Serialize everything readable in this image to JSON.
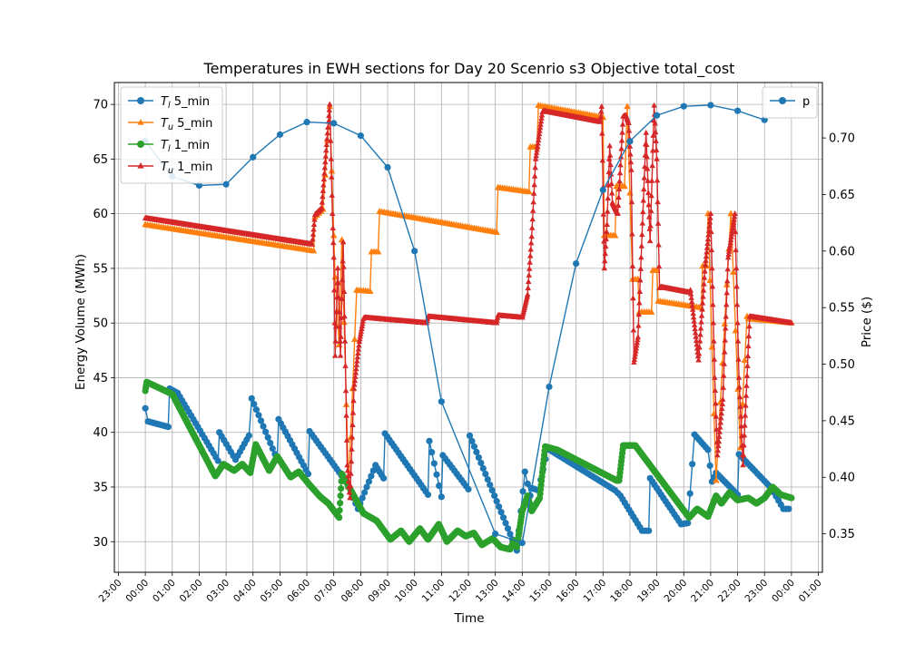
{
  "chart_data": {
    "type": "line",
    "title": "Temperatures in EWH sections for Day 20 Scenrio s3 Objective total_cost",
    "xlabel": "Time",
    "ylabel_left": "Energy Volume (MWh)",
    "ylabel_right": "Price ($)",
    "x_ticks": [
      "23:00",
      "00:00",
      "01:00",
      "02:00",
      "03:00",
      "04:00",
      "05:00",
      "06:00",
      "07:00",
      "08:00",
      "09:00",
      "10:00",
      "11:00",
      "12:00",
      "13:00",
      "14:00",
      "15:00",
      "16:00",
      "17:00",
      "18:00",
      "19:00",
      "20:00",
      "21:00",
      "22:00",
      "23:00",
      "00:00",
      "01:00"
    ],
    "y_left_ticks": [
      30,
      35,
      40,
      45,
      50,
      55,
      60,
      65,
      70
    ],
    "y_right_ticks": [
      0.35,
      0.4,
      0.45,
      0.5,
      0.55,
      0.6,
      0.65,
      0.7
    ],
    "xlim_hours": [
      -1.15,
      25.15
    ],
    "ylim_left": [
      27.2,
      72.0
    ],
    "ylim_right": [
      0.316,
      0.749
    ],
    "grid": true,
    "legend_left": {
      "placement": "top-left",
      "entries": [
        {
          "label": "T_l 5_min",
          "color": "#1f77b4",
          "marker": "circle"
        },
        {
          "label": "T_u 5_min",
          "color": "#ff7f0e",
          "marker": "triangle"
        },
        {
          "label": "T_l 1_min",
          "color": "#2ca02c",
          "marker": "circle"
        },
        {
          "label": "T_u 1_min",
          "color": "#d62728",
          "marker": "triangle"
        }
      ]
    },
    "legend_right": {
      "placement": "top-right",
      "entries": [
        {
          "label": "p",
          "color": "#1f77b4",
          "marker": "circle"
        }
      ]
    },
    "series": [
      {
        "name": "T_l 5_min",
        "axis": "left",
        "color": "#1f77b4",
        "marker": "circle",
        "step_min": 5,
        "keys": [
          [
            0,
            42.2
          ],
          [
            0.1,
            41.0
          ],
          [
            0.85,
            40.5
          ],
          [
            0.9,
            44.0
          ],
          [
            1.2,
            43.6
          ],
          [
            2.7,
            37.4
          ],
          [
            2.75,
            40.0
          ],
          [
            3.35,
            37.5
          ],
          [
            3.85,
            39.7
          ],
          [
            3.95,
            43.1
          ],
          [
            4.9,
            37.5
          ],
          [
            4.95,
            41.2
          ],
          [
            6.05,
            36.2
          ],
          [
            6.1,
            40.1
          ],
          [
            7.45,
            35.5
          ],
          [
            7.9,
            33.0
          ],
          [
            8.55,
            37.0
          ],
          [
            8.85,
            35.8
          ],
          [
            8.9,
            39.9
          ],
          [
            10.5,
            34.3
          ],
          [
            10.55,
            39.2
          ],
          [
            11.0,
            34.1
          ],
          [
            11.05,
            37.9
          ],
          [
            12.0,
            34.8
          ],
          [
            12.05,
            39.7
          ],
          [
            13.8,
            29.2
          ],
          [
            14.1,
            36.4
          ],
          [
            14.3,
            34.2
          ],
          [
            14.35,
            34.9
          ],
          [
            14.6,
            34.7
          ],
          [
            14.95,
            38.5
          ],
          [
            17.45,
            34.7
          ],
          [
            17.65,
            34.2
          ],
          [
            18.45,
            31.0
          ],
          [
            18.7,
            31.0
          ],
          [
            18.75,
            35.8
          ],
          [
            19.9,
            31.6
          ],
          [
            20.15,
            31.7
          ],
          [
            20.4,
            39.8
          ],
          [
            20.9,
            38.4
          ],
          [
            21.05,
            35.5
          ],
          [
            21.2,
            36.3
          ],
          [
            22.0,
            34.3
          ],
          [
            22.05,
            38.0
          ],
          [
            23.25,
            34.9
          ],
          [
            23.7,
            33.0
          ],
          [
            23.9,
            33.0
          ]
        ]
      },
      {
        "name": "T_u 5_min",
        "axis": "left",
        "color": "#ff7f0e",
        "marker": "triangle",
        "step_min": 5,
        "keys": [
          [
            0,
            59.0
          ],
          [
            6.25,
            56.6
          ],
          [
            6.3,
            59.7
          ],
          [
            6.6,
            60.4
          ],
          [
            6.85,
            69.8
          ],
          [
            7.0,
            58.0
          ],
          [
            7.05,
            54.2
          ],
          [
            7.2,
            48.0
          ],
          [
            7.3,
            57.6
          ],
          [
            7.55,
            35.0
          ],
          [
            7.85,
            53.0
          ],
          [
            8.35,
            52.9
          ],
          [
            8.4,
            56.5
          ],
          [
            8.65,
            56.5
          ],
          [
            8.7,
            60.2
          ],
          [
            13.05,
            58.3
          ],
          [
            13.1,
            62.4
          ],
          [
            14.25,
            62.0
          ],
          [
            14.3,
            66.1
          ],
          [
            14.55,
            66.1
          ],
          [
            14.6,
            69.9
          ],
          [
            17.0,
            68.8
          ],
          [
            17.05,
            58.0
          ],
          [
            17.45,
            58.0
          ],
          [
            17.5,
            62.5
          ],
          [
            17.8,
            62.5
          ],
          [
            17.9,
            69.8
          ],
          [
            18.1,
            54.0
          ],
          [
            18.3,
            54.0
          ],
          [
            18.35,
            51.0
          ],
          [
            18.8,
            51.0
          ],
          [
            18.85,
            54.8
          ],
          [
            19.0,
            54.8
          ],
          [
            19.05,
            52.0
          ],
          [
            20.65,
            51.4
          ],
          [
            20.7,
            55.2
          ],
          [
            20.85,
            55.2
          ],
          [
            20.9,
            60.0
          ],
          [
            21.2,
            35.6
          ],
          [
            21.6,
            53.5
          ],
          [
            21.75,
            60.0
          ],
          [
            22.1,
            38.6
          ],
          [
            22.35,
            50.6
          ],
          [
            22.4,
            50.4
          ],
          [
            24.0,
            50.0
          ]
        ]
      },
      {
        "name": "T_l 1_min",
        "axis": "left",
        "color": "#2ca02c",
        "marker": "circle",
        "step_min": 1,
        "keys": [
          [
            0,
            43.8
          ],
          [
            0.05,
            44.6
          ],
          [
            1.0,
            43.5
          ],
          [
            2.6,
            36.0
          ],
          [
            2.9,
            37.1
          ],
          [
            3.3,
            36.5
          ],
          [
            3.6,
            37.1
          ],
          [
            3.9,
            36.3
          ],
          [
            4.1,
            38.9
          ],
          [
            4.6,
            36.5
          ],
          [
            4.9,
            37.8
          ],
          [
            5.4,
            35.9
          ],
          [
            5.7,
            36.4
          ],
          [
            6.1,
            35.2
          ],
          [
            6.5,
            34.1
          ],
          [
            6.8,
            33.5
          ],
          [
            7.2,
            32.2
          ],
          [
            7.3,
            36.2
          ],
          [
            8.1,
            32.6
          ],
          [
            8.6,
            31.9
          ],
          [
            9.1,
            30.2
          ],
          [
            9.5,
            31.0
          ],
          [
            9.8,
            30.0
          ],
          [
            10.2,
            31.2
          ],
          [
            10.5,
            30.2
          ],
          [
            10.9,
            31.6
          ],
          [
            11.2,
            30.0
          ],
          [
            11.6,
            31.0
          ],
          [
            11.9,
            30.5
          ],
          [
            12.2,
            30.8
          ],
          [
            12.5,
            29.7
          ],
          [
            12.9,
            30.3
          ],
          [
            13.2,
            29.5
          ],
          [
            13.55,
            29.3
          ],
          [
            13.7,
            30.1
          ],
          [
            13.8,
            29.5
          ],
          [
            14.0,
            32.8
          ],
          [
            14.2,
            34.2
          ],
          [
            14.35,
            32.8
          ],
          [
            14.65,
            34.0
          ],
          [
            14.85,
            38.7
          ],
          [
            15.3,
            38.4
          ],
          [
            17.5,
            35.6
          ],
          [
            17.6,
            35.6
          ],
          [
            17.75,
            38.8
          ],
          [
            18.2,
            38.8
          ],
          [
            20.2,
            32.2
          ],
          [
            20.5,
            33.0
          ],
          [
            20.9,
            32.3
          ],
          [
            21.2,
            34.2
          ],
          [
            21.4,
            33.5
          ],
          [
            21.7,
            34.5
          ],
          [
            22.0,
            33.8
          ],
          [
            22.4,
            34.0
          ],
          [
            22.7,
            33.5
          ],
          [
            23.0,
            34.0
          ],
          [
            23.3,
            35.0
          ],
          [
            23.6,
            34.3
          ],
          [
            24.0,
            34.0
          ]
        ]
      },
      {
        "name": "T_u 1_min",
        "axis": "left",
        "color": "#d62728",
        "marker": "triangle",
        "step_min": 1,
        "keys": [
          [
            0,
            59.6
          ],
          [
            6.2,
            57.2
          ],
          [
            6.3,
            59.9
          ],
          [
            6.55,
            60.5
          ],
          [
            6.85,
            70.0
          ],
          [
            6.95,
            60.0
          ],
          [
            7.0,
            56.0
          ],
          [
            7.05,
            47.0
          ],
          [
            7.15,
            55.0
          ],
          [
            7.25,
            47.0
          ],
          [
            7.35,
            57.4
          ],
          [
            7.5,
            37.0
          ],
          [
            7.6,
            34.0
          ],
          [
            7.75,
            44.0
          ],
          [
            7.95,
            48.3
          ],
          [
            8.1,
            50.4
          ],
          [
            8.15,
            50.5
          ],
          [
            10.45,
            50.0
          ],
          [
            10.5,
            50.6
          ],
          [
            13.05,
            50.0
          ],
          [
            13.1,
            50.7
          ],
          [
            14.0,
            50.5
          ],
          [
            14.2,
            52.6
          ],
          [
            14.35,
            57.9
          ],
          [
            14.5,
            65.0
          ],
          [
            14.75,
            69.3
          ],
          [
            14.8,
            69.4
          ],
          [
            16.9,
            68.4
          ],
          [
            16.95,
            69.8
          ],
          [
            17.05,
            55.0
          ],
          [
            17.15,
            59.0
          ],
          [
            17.25,
            66.2
          ],
          [
            17.35,
            61.0
          ],
          [
            17.55,
            60.0
          ],
          [
            17.75,
            68.9
          ],
          [
            17.85,
            69.0
          ],
          [
            17.95,
            68.3
          ],
          [
            18.05,
            64.0
          ],
          [
            18.15,
            46.4
          ],
          [
            18.3,
            48.7
          ],
          [
            18.5,
            61.2
          ],
          [
            18.6,
            67.4
          ],
          [
            18.75,
            57.5
          ],
          [
            18.9,
            69.9
          ],
          [
            19.0,
            65.0
          ],
          [
            19.1,
            53.2
          ],
          [
            19.15,
            53.3
          ],
          [
            20.2,
            52.8
          ],
          [
            20.25,
            53.0
          ],
          [
            20.55,
            46.6
          ],
          [
            20.8,
            55.3
          ],
          [
            21.0,
            60.0
          ],
          [
            21.15,
            45.0
          ],
          [
            21.25,
            37.9
          ],
          [
            21.45,
            43.0
          ],
          [
            21.65,
            56.0
          ],
          [
            21.9,
            60.0
          ],
          [
            22.05,
            45.0
          ],
          [
            22.2,
            37.0
          ],
          [
            22.45,
            50.6
          ],
          [
            24.0,
            50.0
          ]
        ]
      },
      {
        "name": "p",
        "axis": "right",
        "color": "#1f77b4",
        "marker": "circle",
        "x": [
          0,
          1,
          2,
          3,
          4,
          5,
          6,
          7,
          8,
          9,
          10,
          11,
          12,
          13,
          14,
          15,
          16,
          17,
          18,
          19,
          20,
          21,
          22,
          23
        ],
        "values": [
          0.697,
          0.666,
          0.658,
          0.659,
          0.683,
          0.703,
          0.714,
          0.713,
          0.702,
          0.674,
          0.6,
          0.467,
          null,
          0.35,
          0.342,
          0.48,
          0.589,
          0.654,
          0.697,
          0.72,
          0.728,
          0.729,
          0.724,
          0.716
        ]
      }
    ]
  }
}
